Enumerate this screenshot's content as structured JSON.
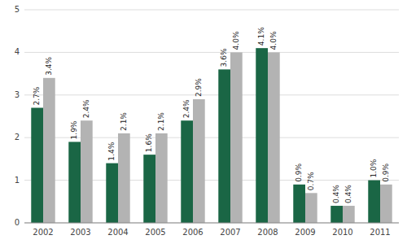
{
  "chart_data": {
    "type": "bar",
    "categories": [
      "2002",
      "2003",
      "2004",
      "2005",
      "2006",
      "2007",
      "2008",
      "2009",
      "2010",
      "2011"
    ],
    "series": [
      {
        "color": "#1a6645",
        "values": [
          2.7,
          1.9,
          1.4,
          1.6,
          2.4,
          3.6,
          4.1,
          0.9,
          0.4,
          1.0
        ],
        "value_labels": [
          "2.7%",
          "1.9%",
          "1.4%",
          "1.6%",
          "2.4%",
          "3.6%",
          "4.1%",
          "0.9%",
          "0.4%",
          "1.0%"
        ]
      },
      {
        "color": "#b3b3b3",
        "values": [
          3.4,
          2.4,
          2.1,
          2.1,
          2.9,
          4.0,
          4.0,
          0.7,
          0.4,
          0.9
        ],
        "value_labels": [
          "3.4%",
          "2.4%",
          "2.1%",
          "2.1%",
          "2.9%",
          "4.0%",
          "4.0%",
          "0.7%",
          "0.4%",
          "0.9%"
        ]
      }
    ],
    "ylim": [
      0,
      5
    ],
    "yticks": [
      0,
      1,
      2,
      3,
      4,
      5
    ],
    "grid": true,
    "data_labels": true
  }
}
